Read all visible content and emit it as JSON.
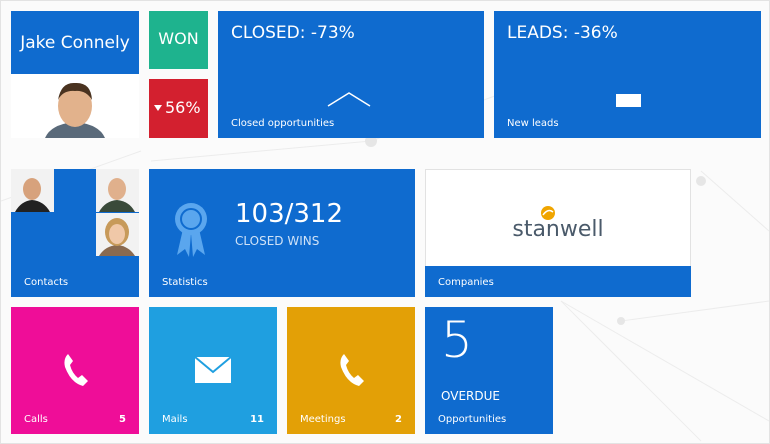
{
  "profile": {
    "name": "Jake Connely"
  },
  "won": {
    "label": "WON"
  },
  "change": {
    "value": "56%"
  },
  "closed": {
    "title": "CLOSED: -73%",
    "label": "Closed opportunities"
  },
  "leads": {
    "title": "LEADS: -36%",
    "label": "New leads"
  },
  "contacts": {
    "label": "Contacts"
  },
  "statistics": {
    "value": "103/312",
    "caption": "CLOSED WINS",
    "label": "Statistics"
  },
  "companies": {
    "logo": "stanwell",
    "label": "Companies"
  },
  "calls": {
    "label": "Calls",
    "count": "5"
  },
  "mails": {
    "label": "Mails",
    "count": "11"
  },
  "meetings": {
    "label": "Meetings",
    "count": "2"
  },
  "opportunities": {
    "value": "5",
    "caption": "OVERDUE",
    "label": "Opportunities"
  }
}
